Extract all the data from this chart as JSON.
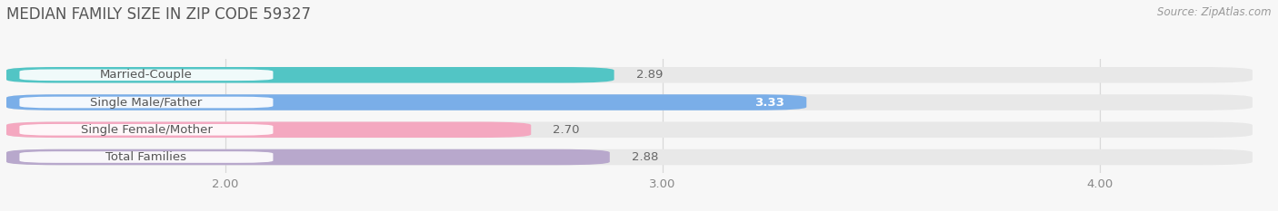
{
  "title": "MEDIAN FAMILY SIZE IN ZIP CODE 59327",
  "source": "Source: ZipAtlas.com",
  "categories": [
    "Married-Couple",
    "Single Male/Father",
    "Single Female/Mother",
    "Total Families"
  ],
  "values": [
    2.89,
    3.33,
    2.7,
    2.88
  ],
  "bar_colors": [
    "#52C5C5",
    "#7AAEE8",
    "#F4A8C0",
    "#B8A8CC"
  ],
  "xlim_min": 1.5,
  "xlim_max": 4.35,
  "xticks": [
    2.0,
    3.0,
    4.0
  ],
  "xtick_labels": [
    "2.00",
    "3.00",
    "4.00"
  ],
  "bar_height": 0.58,
  "background_color": "#f7f7f7",
  "bar_bg_color": "#e8e8e8",
  "grid_color": "#d8d8d8",
  "label_fontsize": 9.5,
  "value_fontsize": 9.5,
  "title_fontsize": 12,
  "source_fontsize": 8.5,
  "value_color_inside": "#ffffff",
  "value_color_outside": "#666666",
  "label_box_color": "#ffffff",
  "label_text_color": "#555555",
  "title_color": "#555555",
  "source_color": "#999999"
}
